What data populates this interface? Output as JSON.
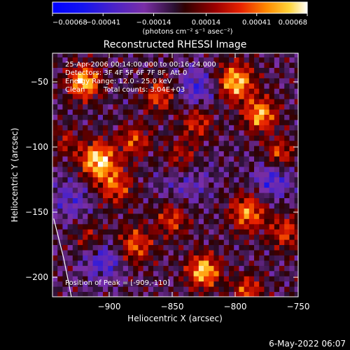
{
  "chart_data": {
    "type": "heatmap",
    "title": "Reconstructed RHESSI Image",
    "xlabel": "Heliocentric X (arcsec)",
    "ylabel": "Heliocentric Y (arcsec)",
    "xlim": [
      -945,
      -750
    ],
    "ylim": [
      -215,
      -28
    ],
    "x_ticks": [
      {
        "value": -900,
        "label": "−900"
      },
      {
        "value": -850,
        "label": "−850"
      },
      {
        "value": -800,
        "label": "−800"
      },
      {
        "value": -750,
        "label": "−750"
      }
    ],
    "y_ticks": [
      {
        "value": -50,
        "label": "−50"
      },
      {
        "value": -100,
        "label": "−100"
      },
      {
        "value": -150,
        "label": "−150"
      },
      {
        "value": -200,
        "label": "−200"
      }
    ],
    "colorbar": {
      "min": -0.00068,
      "max": 0.00068,
      "units": "(photons cm⁻² s⁻¹ asec⁻²)",
      "ticks": [
        {
          "value": -0.00068,
          "label": "−0.00068"
        },
        {
          "value": -0.00041,
          "label": "−0.00041"
        },
        {
          "value": -0.00014,
          "label": "−0.00014"
        },
        {
          "value": 0.00014,
          "label": "0.00014"
        },
        {
          "value": 0.00041,
          "label": "0.00041"
        },
        {
          "value": 0.00068,
          "label": "0.00068"
        }
      ]
    },
    "annotations": {
      "time": "25-Apr-2006 00:14:00.000 to 00:16:24.000",
      "detectors": "Detectors: 3F 4F 5F 6F 7F 8F, Att 0",
      "energy": "Energy Range: 12.0 - 25.0 keV",
      "clean_label": "Clean",
      "total_counts": "Total counts: 3.04E+03",
      "peak": "Position of Peak = [-909,-110]"
    },
    "peak": {
      "x": -909,
      "y": -110
    },
    "limb_curve": [
      {
        "x": -944,
        "y": -155
      },
      {
        "x": -936,
        "y": -186
      },
      {
        "x": -930,
        "y": -215
      }
    ],
    "hot_spots": [
      {
        "x": -920,
        "y": -50,
        "amp": 0.95,
        "sigma": 9
      },
      {
        "x": -909,
        "y": -110,
        "amp": 1.0,
        "sigma": 10
      },
      {
        "x": -895,
        "y": -130,
        "amp": 0.6,
        "sigma": 10
      },
      {
        "x": -880,
        "y": -95,
        "amp": 0.55,
        "sigma": 9
      },
      {
        "x": -860,
        "y": -60,
        "amp": 0.6,
        "sigma": 9
      },
      {
        "x": -842,
        "y": -110,
        "amp": 0.7,
        "sigma": 11
      },
      {
        "x": -830,
        "y": -80,
        "amp": 0.55,
        "sigma": 9
      },
      {
        "x": -800,
        "y": -50,
        "amp": 0.95,
        "sigma": 10
      },
      {
        "x": -780,
        "y": -75,
        "amp": 0.85,
        "sigma": 9
      },
      {
        "x": -765,
        "y": -105,
        "amp": 0.6,
        "sigma": 8
      },
      {
        "x": -790,
        "y": -150,
        "amp": 0.75,
        "sigma": 10
      },
      {
        "x": -760,
        "y": -165,
        "amp": 0.55,
        "sigma": 9
      },
      {
        "x": -850,
        "y": -155,
        "amp": 0.55,
        "sigma": 9
      },
      {
        "x": -880,
        "y": -175,
        "amp": 0.65,
        "sigma": 10
      },
      {
        "x": -915,
        "y": -170,
        "amp": 0.45,
        "sigma": 9
      },
      {
        "x": -825,
        "y": -195,
        "amp": 0.95,
        "sigma": 9
      },
      {
        "x": -790,
        "y": -210,
        "amp": 0.6,
        "sigma": 8
      },
      {
        "x": -935,
        "y": -95,
        "amp": 0.35,
        "sigma": 8
      }
    ],
    "cold_spots": [
      {
        "x": -840,
        "y": -120,
        "amp": 0.5,
        "sigma": 14
      },
      {
        "x": -905,
        "y": -185,
        "amp": 0.5,
        "sigma": 12
      },
      {
        "x": -830,
        "y": -55,
        "amp": 0.45,
        "sigma": 12
      },
      {
        "x": -770,
        "y": -125,
        "amp": 0.45,
        "sigma": 11
      },
      {
        "x": -930,
        "y": -140,
        "amp": 0.35,
        "sigma": 12
      }
    ]
  },
  "footer": {
    "date": "6-May-2022 06:07"
  }
}
